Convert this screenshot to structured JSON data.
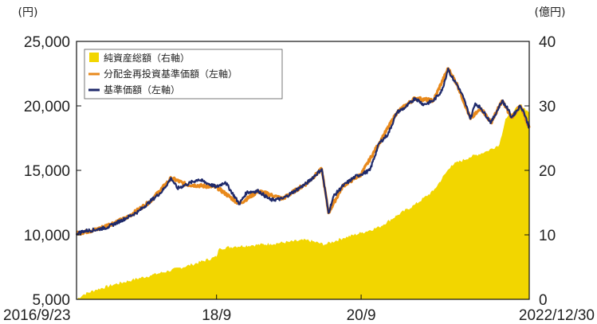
{
  "chart_data": {
    "type": "area+line",
    "title": "",
    "left_axis": {
      "unit": "(円)",
      "ticks": [
        "25,000",
        "20,000",
        "15,000",
        "10,000",
        "5,000"
      ],
      "tick_values": [
        25000,
        20000,
        15000,
        10000,
        5000
      ],
      "range": [
        5000,
        25000
      ]
    },
    "right_axis": {
      "unit": "(億円)",
      "ticks": [
        "40",
        "30",
        "20",
        "10",
        "0"
      ],
      "tick_values": [
        40,
        30,
        20,
        10,
        0
      ],
      "range": [
        0,
        40
      ]
    },
    "x_axis": {
      "ticks": [
        "2016/9/23",
        "18/9",
        "20/9",
        "2022/12/30"
      ],
      "tick_dates": [
        "2016-09-23",
        "2018-09-01",
        "2020-09-01",
        "2022-12-30"
      ],
      "range": [
        "2016-09-23",
        "2022-12-30"
      ]
    },
    "legend": {
      "placement": "top-left",
      "items": [
        {
          "label": "純資産総額（右軸）",
          "color": "#f2d600",
          "kind": "area"
        },
        {
          "label": "分配金再投資基準価額（左軸）",
          "color": "#e8891c",
          "kind": "line"
        },
        {
          "label": "基準価額（左軸）",
          "color": "#1f2a6b",
          "kind": "line"
        }
      ]
    },
    "grid": false,
    "series": [
      {
        "name": "純資産総額（右軸）",
        "axis": "right",
        "color": "#f2d600",
        "points": [
          [
            "2016-09-23",
            0
          ],
          [
            "2016-11-01",
            0.8
          ],
          [
            "2017-01-01",
            1.5
          ],
          [
            "2017-04-01",
            2.3
          ],
          [
            "2017-07-01",
            3.0
          ],
          [
            "2017-10-01",
            3.7
          ],
          [
            "2018-01-01",
            4.4
          ],
          [
            "2018-05-01",
            5.4
          ],
          [
            "2018-09-01",
            6.6
          ],
          [
            "2018-09-10",
            7.6
          ],
          [
            "2018-09-20",
            7.9
          ],
          [
            "2018-12-01",
            8.2
          ],
          [
            "2019-03-01",
            8.4
          ],
          [
            "2019-06-01",
            8.6
          ],
          [
            "2019-09-01",
            8.9
          ],
          [
            "2019-12-01",
            9.2
          ],
          [
            "2020-03-01",
            8.5
          ],
          [
            "2020-06-01",
            9.5
          ],
          [
            "2020-09-01",
            10.3
          ],
          [
            "2020-12-01",
            11.2
          ],
          [
            "2021-03-01",
            13.0
          ],
          [
            "2021-06-01",
            14.7
          ],
          [
            "2021-09-01",
            16.8
          ],
          [
            "2021-12-01",
            20.8
          ],
          [
            "2022-03-01",
            22.0
          ],
          [
            "2022-06-01",
            23.0
          ],
          [
            "2022-08-01",
            24.0
          ],
          [
            "2022-09-01",
            28.0
          ],
          [
            "2022-10-01",
            28.8
          ],
          [
            "2022-11-15",
            30.2
          ],
          [
            "2022-12-30",
            29.0
          ]
        ]
      },
      {
        "name": "分配金再投資基準価額（左軸）",
        "axis": "left",
        "color": "#e8891c",
        "points": [
          [
            "2016-09-23",
            10100
          ],
          [
            "2017-01-01",
            10400
          ],
          [
            "2017-06-01",
            11300
          ],
          [
            "2017-10-01",
            12600
          ],
          [
            "2018-01-15",
            14400
          ],
          [
            "2018-04-01",
            13900
          ],
          [
            "2018-09-01",
            13700
          ],
          [
            "2018-12-25",
            12400
          ],
          [
            "2019-04-01",
            13400
          ],
          [
            "2019-08-01",
            12800
          ],
          [
            "2019-12-01",
            14000
          ],
          [
            "2020-02-15",
            15100
          ],
          [
            "2020-03-20",
            11700
          ],
          [
            "2020-06-01",
            13800
          ],
          [
            "2020-09-01",
            14700
          ],
          [
            "2020-12-01",
            17100
          ],
          [
            "2021-03-01",
            19500
          ],
          [
            "2021-06-01",
            20600
          ],
          [
            "2021-09-01",
            20400
          ],
          [
            "2021-11-15",
            22900
          ],
          [
            "2022-01-01",
            21600
          ],
          [
            "2022-03-08",
            19000
          ],
          [
            "2022-05-01",
            19800
          ],
          [
            "2022-06-20",
            18700
          ],
          [
            "2022-08-15",
            20400
          ],
          [
            "2022-10-01",
            19100
          ],
          [
            "2022-11-15",
            20000
          ],
          [
            "2022-12-30",
            18300
          ]
        ]
      },
      {
        "name": "基準価額（左軸）",
        "axis": "left",
        "color": "#1f2a6b",
        "points": [
          [
            "2016-09-23",
            10100
          ],
          [
            "2016-11-01",
            10300
          ],
          [
            "2017-01-01",
            10400
          ],
          [
            "2017-03-01",
            10600
          ],
          [
            "2017-06-01",
            11300
          ],
          [
            "2017-08-01",
            11800
          ],
          [
            "2017-10-01",
            12600
          ],
          [
            "2017-12-01",
            13400
          ],
          [
            "2018-01-15",
            14400
          ],
          [
            "2018-02-15",
            13600
          ],
          [
            "2018-04-01",
            13900
          ],
          [
            "2018-06-01",
            14300
          ],
          [
            "2018-09-01",
            13700
          ],
          [
            "2018-10-15",
            14100
          ],
          [
            "2018-12-25",
            12400
          ],
          [
            "2019-02-01",
            13300
          ],
          [
            "2019-04-01",
            13400
          ],
          [
            "2019-06-01",
            12700
          ],
          [
            "2019-08-01",
            12800
          ],
          [
            "2019-10-01",
            13400
          ],
          [
            "2019-12-01",
            14000
          ],
          [
            "2020-02-15",
            15100
          ],
          [
            "2020-03-20",
            11700
          ],
          [
            "2020-04-15",
            13000
          ],
          [
            "2020-06-01",
            13800
          ],
          [
            "2020-08-01",
            14500
          ],
          [
            "2020-09-01",
            14700
          ],
          [
            "2020-10-15",
            15000
          ],
          [
            "2020-12-01",
            17100
          ],
          [
            "2021-01-15",
            17800
          ],
          [
            "2021-03-01",
            19500
          ],
          [
            "2021-04-15",
            19900
          ],
          [
            "2021-06-01",
            20600
          ],
          [
            "2021-07-15",
            20100
          ],
          [
            "2021-09-01",
            20400
          ],
          [
            "2021-10-15",
            21200
          ],
          [
            "2021-11-15",
            22900
          ],
          [
            "2021-12-01",
            22300
          ],
          [
            "2022-01-01",
            21600
          ],
          [
            "2022-02-01",
            20600
          ],
          [
            "2022-03-08",
            19000
          ],
          [
            "2022-04-01",
            20200
          ],
          [
            "2022-05-01",
            19800
          ],
          [
            "2022-06-20",
            18700
          ],
          [
            "2022-08-15",
            20400
          ],
          [
            "2022-09-15",
            19700
          ],
          [
            "2022-10-01",
            19100
          ],
          [
            "2022-11-15",
            20000
          ],
          [
            "2022-12-01",
            19600
          ],
          [
            "2022-12-30",
            18300
          ]
        ]
      }
    ]
  }
}
